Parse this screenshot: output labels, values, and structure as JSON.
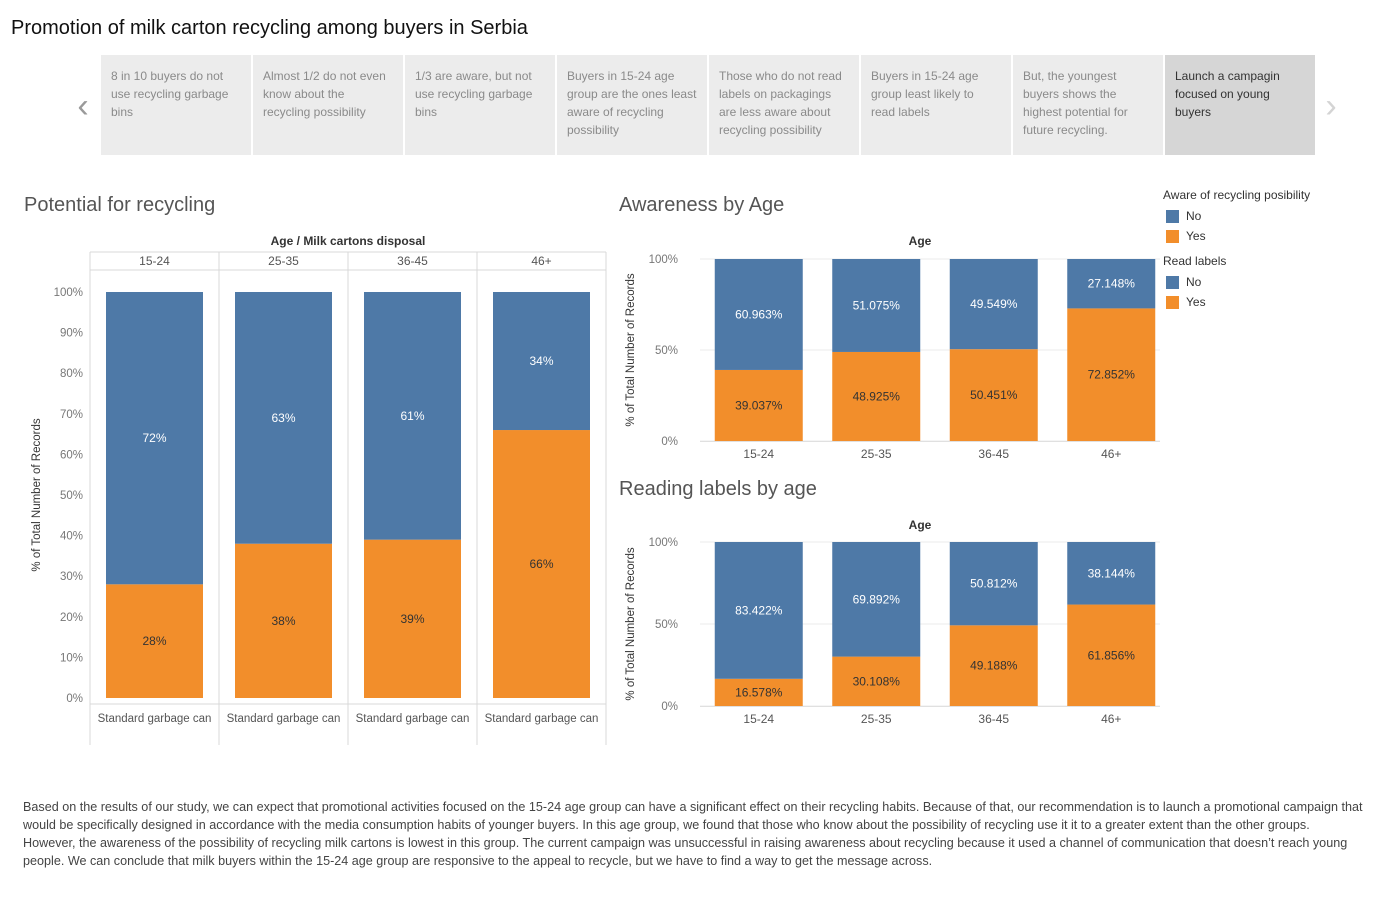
{
  "title": "Promotion of milk carton recycling among buyers in Serbia",
  "colors": {
    "no": "#4e79a7",
    "yes": "#f28e2b",
    "story_bg": "#ececec",
    "story_active": "#d6d6d6",
    "grid": "#e6e6e6"
  },
  "nav": {
    "prev_icon": "chevron-left-icon",
    "prev_glyph": "‹",
    "next_icon": "chevron-right-icon",
    "next_glyph": "›"
  },
  "story_points": [
    {
      "text": "8 in 10 buyers do not use recycling garbage bins",
      "active": false
    },
    {
      "text": "Almost 1/2 do not even know about the recycling possibility",
      "active": false
    },
    {
      "text": "1/3 are aware, but not use recycling garbage bins",
      "active": false
    },
    {
      "text": "Buyers in 15-24 age group are the ones least aware of recycling possibility",
      "active": false
    },
    {
      "text": "Those who do not read labels on packagings are less aware about recycling possibility",
      "active": false
    },
    {
      "text": "Buyers in 15-24 age group least likely to read labels",
      "active": false
    },
    {
      "text": "But, the youngest buyers shows the highest potential for future recycling.",
      "active": false
    },
    {
      "text": "Launch a campagin focused on young buyers",
      "active": true
    }
  ],
  "legend": {
    "groups": [
      {
        "title": "Aware of recycling posibility",
        "items": [
          {
            "label": "No",
            "color": "#4e79a7"
          },
          {
            "label": "Yes",
            "color": "#f28e2b"
          }
        ]
      },
      {
        "title": "Read labels",
        "items": [
          {
            "label": "No",
            "color": "#4e79a7"
          },
          {
            "label": "Yes",
            "color": "#f28e2b"
          }
        ]
      }
    ]
  },
  "summary": "Based on the results of our study, we can expect that promotional activities focused on the 15-24 age group can have a significant effect on their recycling habits. Because of that, our recommendation is to launch a promotional campaign that would be specifically designed in accordance with the media consumption habits of younger buyers. In this age group, we found that those who know about the possibility of recycling use it it to a greater extent than the other groups. However, the awareness of the possibility of recycling milk cartons is lowest in this group. The current campaign was unsuccessful in raising awareness about recycling because it used a channel of communication that doesn’t reach young people. We can conclude that milk buyers within the 15-24 age group are responsive to the appeal to recycle, but we have to find a way to get the message across.",
  "chart_data": [
    {
      "id": "potential",
      "type": "bar",
      "stacked": true,
      "title": "Potential for recycling",
      "header": "Age / Milk cartons disposal",
      "column_headers": [
        "15-24",
        "25-35",
        "36-45",
        "46+"
      ],
      "categories": [
        "Standard garbage can",
        "Standard garbage can",
        "Standard garbage can",
        "Standard garbage can"
      ],
      "ylabel": "% of Total Number of Records",
      "ylim": [
        0,
        100
      ],
      "yticks": [
        "0%",
        "10%",
        "20%",
        "30%",
        "40%",
        "50%",
        "60%",
        "70%",
        "80%",
        "90%",
        "100%"
      ],
      "grid": false,
      "series": [
        {
          "color": "#f28e2b",
          "values": [
            28,
            38,
            39,
            66
          ],
          "labels": [
            "28%",
            "38%",
            "39%",
            "66%"
          ]
        },
        {
          "color": "#4e79a7",
          "values": [
            72,
            63,
            61,
            34
          ],
          "labels": [
            "72%",
            "63%",
            "61%",
            "34%"
          ]
        }
      ]
    },
    {
      "id": "awareness",
      "type": "bar",
      "stacked": true,
      "title": "Awareness by Age",
      "header": "Age",
      "categories": [
        "15-24",
        "25-35",
        "36-45",
        "46+"
      ],
      "ylabel": "% of Total Number of Records",
      "ylim": [
        0,
        100
      ],
      "yticks": [
        "0%",
        "50%",
        "100%"
      ],
      "grid": true,
      "series": [
        {
          "color": "#f28e2b",
          "values": [
            39.037,
            48.925,
            50.451,
            72.852
          ],
          "labels": [
            "39.037%",
            "48.925%",
            "50.451%",
            "72.852%"
          ]
        },
        {
          "color": "#4e79a7",
          "values": [
            60.963,
            51.075,
            49.549,
            27.148
          ],
          "labels": [
            "60.963%",
            "51.075%",
            "49.549%",
            "27.148%"
          ]
        }
      ]
    },
    {
      "id": "reading",
      "type": "bar",
      "stacked": true,
      "title": "Reading labels by age",
      "header": "Age",
      "categories": [
        "15-24",
        "25-35",
        "36-45",
        "46+"
      ],
      "ylabel": "% of Total Number of Records",
      "ylim": [
        0,
        100
      ],
      "yticks": [
        "0%",
        "50%",
        "100%"
      ],
      "grid": true,
      "series": [
        {
          "color": "#f28e2b",
          "values": [
            16.578,
            30.108,
            49.188,
            61.856
          ],
          "labels": [
            "16.578%",
            "30.108%",
            "49.188%",
            "61.856%"
          ]
        },
        {
          "color": "#4e79a7",
          "values": [
            83.422,
            69.892,
            50.812,
            38.144
          ],
          "labels": [
            "83.422%",
            "69.892%",
            "50.812%",
            "38.144%"
          ]
        }
      ]
    }
  ]
}
